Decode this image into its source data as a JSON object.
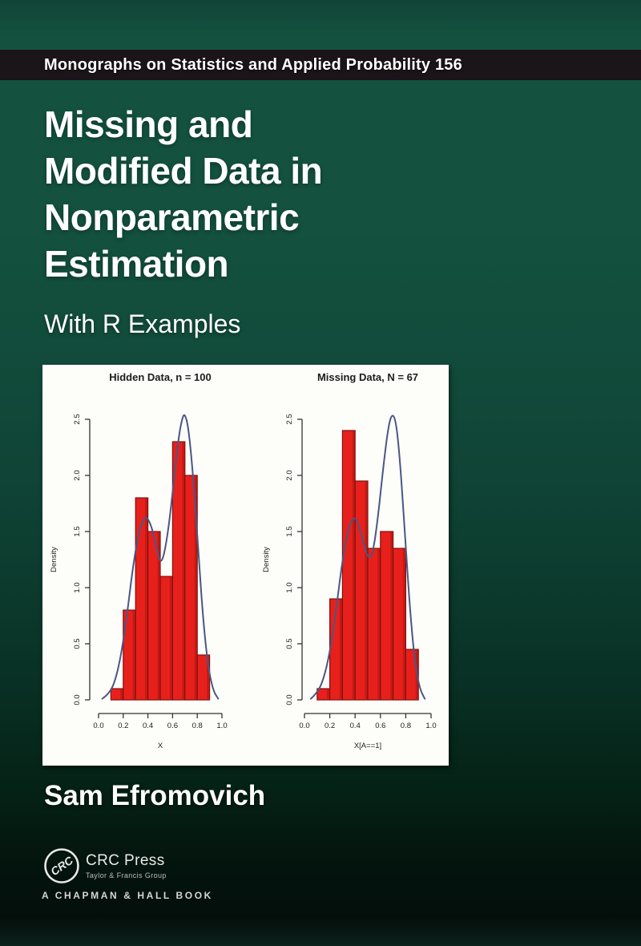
{
  "series": {
    "text": "Monographs on Statistics and Applied Probability 156"
  },
  "title": {
    "lines": [
      "Missing and",
      "Modified Data in",
      "Nonparametric",
      "Estimation"
    ],
    "subtitle": "With R Examples"
  },
  "author": {
    "name": "Sam Efromovich"
  },
  "publisher": {
    "logo": "CRC",
    "name": "CRC Press",
    "group": "Taylor & Francis Group",
    "imprint": "A CHAPMAN & HALL BOOK"
  },
  "colors": {
    "background_top": "#14523f",
    "background_bottom": "#04100c",
    "series_band": "#1b1418",
    "panel": "#fdfdfa",
    "bar_fill": "#e8201c",
    "bar_edge": "#7e120e",
    "bar_shade": "#a61511",
    "curve": "#4b5783",
    "text": "#ffffff"
  },
  "chart_data": [
    {
      "type": "bar",
      "subtype": "histogram-with-density-curve",
      "title": "Hidden Data,  n  =  100",
      "xlabel": "X",
      "ylabel": "Density",
      "xlim": [
        0,
        1
      ],
      "ylim": [
        0,
        2.5
      ],
      "xticks": [
        "0.0",
        "0.2",
        "0.4",
        "0.6",
        "0.8",
        "1.0"
      ],
      "yticks": [
        "0.0",
        "0.5",
        "1.0",
        "1.5",
        "2.0",
        "2.5"
      ],
      "grid": false,
      "legend": null,
      "bin_start": 0.1,
      "bin_width": 0.1,
      "values": [
        0.1,
        0.8,
        1.8,
        1.5,
        1.1,
        2.3,
        2.0,
        0.4
      ],
      "curve_x": [
        0.03,
        0.08,
        0.13,
        0.18,
        0.23,
        0.28,
        0.33,
        0.38,
        0.43,
        0.47,
        0.5,
        0.53,
        0.57,
        0.61,
        0.65,
        0.68,
        0.7,
        0.73,
        0.77,
        0.81,
        0.85,
        0.89,
        0.93,
        0.97
      ],
      "curve_y": [
        0.01,
        0.05,
        0.15,
        0.38,
        0.75,
        1.2,
        1.52,
        1.65,
        1.55,
        1.35,
        1.22,
        1.28,
        1.55,
        1.95,
        2.35,
        2.52,
        2.55,
        2.42,
        1.95,
        1.3,
        0.68,
        0.28,
        0.08,
        0.01
      ]
    },
    {
      "type": "bar",
      "subtype": "histogram-with-density-curve",
      "title": "Missing Data,  N  =  67",
      "xlabel": "X[A==1]",
      "ylabel": "Density",
      "xlim": [
        0,
        1
      ],
      "ylim": [
        0,
        2.5
      ],
      "xticks": [
        "0.0",
        "0.2",
        "0.4",
        "0.6",
        "0.8",
        "1.0"
      ],
      "yticks": [
        "0.0",
        "0.5",
        "1.0",
        "1.5",
        "2.0",
        "2.5"
      ],
      "grid": false,
      "legend": null,
      "bin_start": 0.1,
      "bin_width": 0.1,
      "values": [
        0.1,
        0.9,
        2.4,
        1.95,
        1.35,
        1.5,
        1.35,
        0.45
      ],
      "curve_x": [
        0.05,
        0.1,
        0.15,
        0.2,
        0.25,
        0.3,
        0.35,
        0.4,
        0.45,
        0.5,
        0.54,
        0.58,
        0.62,
        0.66,
        0.69,
        0.72,
        0.75,
        0.79,
        0.83,
        0.87,
        0.91,
        0.95
      ],
      "curve_y": [
        0.01,
        0.06,
        0.18,
        0.42,
        0.8,
        1.25,
        1.55,
        1.65,
        1.48,
        1.25,
        1.3,
        1.62,
        2.05,
        2.42,
        2.55,
        2.5,
        2.2,
        1.55,
        0.85,
        0.35,
        0.1,
        0.01
      ]
    }
  ]
}
